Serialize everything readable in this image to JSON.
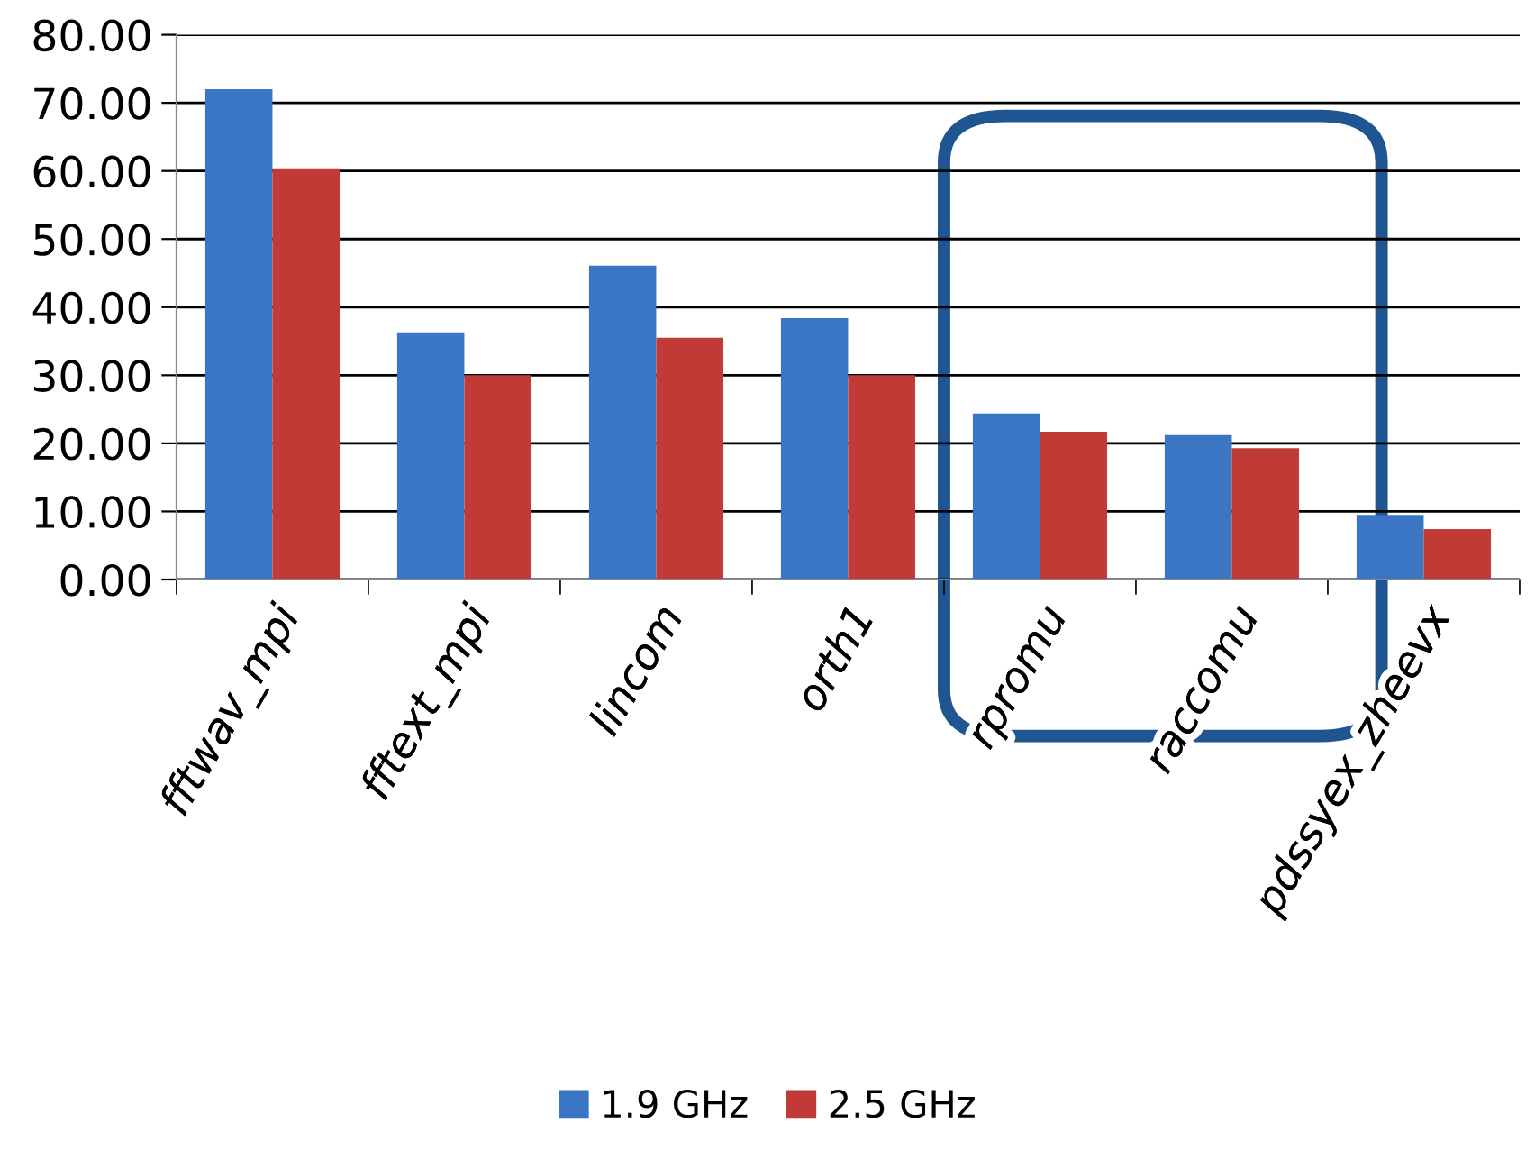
{
  "chart_data": {
    "type": "bar",
    "categories": [
      "fftwav_mpi",
      "fftext_mpi",
      "lincom",
      "orth1",
      "rpromu",
      "raccomu",
      "pdssyex_zheevx"
    ],
    "series": [
      {
        "name": "1.9 GHz",
        "color": "#3a76c4",
        "values": [
          72,
          36.3,
          46.1,
          38.4,
          24.4,
          21.2,
          9.5
        ]
      },
      {
        "name": "2.5 GHz",
        "color": "#c23a35",
        "values": [
          60.4,
          30,
          35.5,
          30,
          21.7,
          19.3,
          7.4
        ]
      }
    ],
    "ylim": [
      0,
      80
    ],
    "yticks": [
      {
        "value": 0,
        "label": "0.00"
      },
      {
        "value": 10,
        "label": "10.00"
      },
      {
        "value": 20,
        "label": "20.00"
      },
      {
        "value": 30,
        "label": "30.00"
      },
      {
        "value": 40,
        "label": "40.00"
      },
      {
        "value": 50,
        "label": "50.00"
      },
      {
        "value": 60,
        "label": "60.00"
      },
      {
        "value": 70,
        "label": "70.00"
      },
      {
        "value": 80,
        "label": "80.00"
      }
    ],
    "grid": "y",
    "legend": "bottom"
  }
}
